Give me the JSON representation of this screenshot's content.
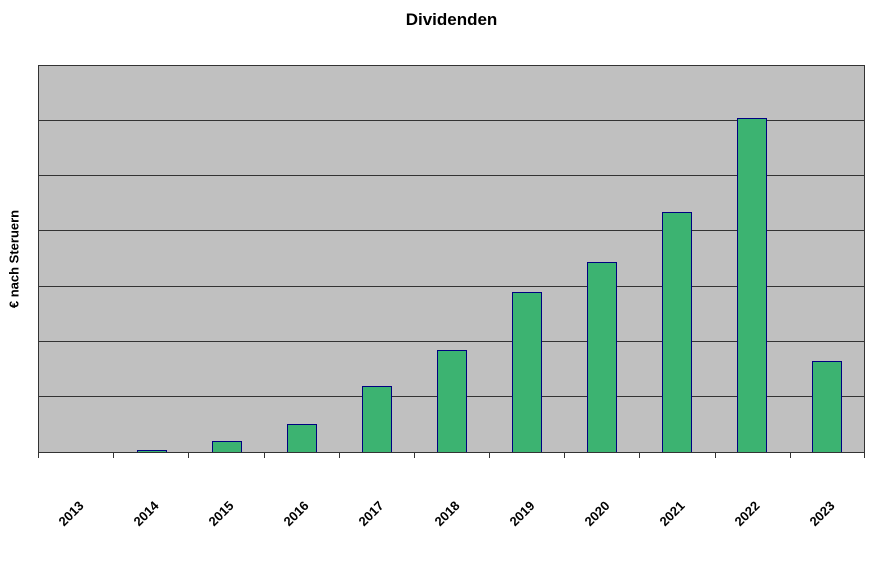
{
  "page": {
    "background": "#ffffff"
  },
  "chart_data": {
    "type": "bar",
    "title": "Dividenden",
    "xlabel": "",
    "ylabel": "€ nach Steruern",
    "categories": [
      "2013",
      "2014",
      "2015",
      "2016",
      "2017",
      "2018",
      "2019",
      "2020",
      "2021",
      "2022",
      "2023"
    ],
    "values": [
      0,
      0.04,
      0.2,
      0.5,
      1.2,
      1.85,
      2.9,
      3.45,
      4.35,
      6.05,
      1.65
    ],
    "value_units": "gridline-units (no numeric y-axis tick labels visible)",
    "ylim": [
      0,
      7
    ],
    "gridline_step": 1,
    "grid": true,
    "legend": false,
    "bar_color": "#3cb371",
    "bar_border_color": "#000080",
    "plot_background": "#c0c0c0",
    "axis_color": "#333333"
  }
}
